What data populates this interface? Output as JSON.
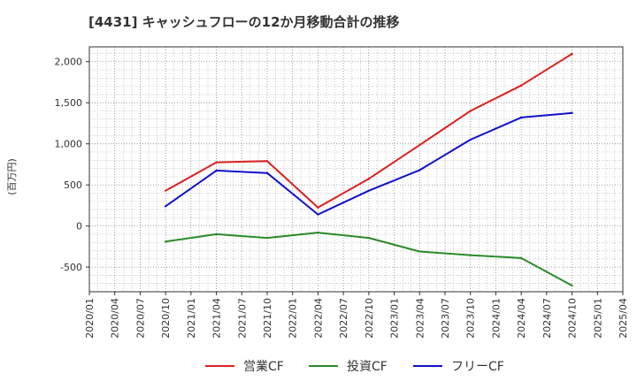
{
  "chart_data": {
    "type": "line",
    "title": "[4431]  キャッシュフローの12か月移動合計の推移",
    "ylabel": "(百万円)",
    "xlabel": "",
    "ylim": [
      -800,
      2180
    ],
    "yticks": [
      -500,
      0,
      500,
      1000,
      1500,
      2000
    ],
    "ytick_labels": [
      "-500",
      "0",
      "500",
      "1,000",
      "1,500",
      "2,000"
    ],
    "grid": true,
    "legend_position": "bottom",
    "categories": [
      "2020/01",
      "2020/04",
      "2020/07",
      "2020/10",
      "2021/01",
      "2021/04",
      "2021/07",
      "2021/10",
      "2022/01",
      "2022/04",
      "2022/07",
      "2022/10",
      "2023/01",
      "2023/04",
      "2023/07",
      "2023/10",
      "2024/01",
      "2024/04",
      "2024/07",
      "2024/10",
      "2025/01",
      "2025/04"
    ],
    "series": [
      {
        "name": "営業CF",
        "color": "#dd1f1f",
        "points": [
          [
            "2020/10",
            430
          ],
          [
            "2021/04",
            775
          ],
          [
            "2021/10",
            790
          ],
          [
            "2022/04",
            225
          ],
          [
            "2022/10",
            575
          ],
          [
            "2023/04",
            985
          ],
          [
            "2023/10",
            1400
          ],
          [
            "2024/04",
            1710
          ],
          [
            "2024/10",
            2095
          ]
        ]
      },
      {
        "name": "投資CF",
        "color": "#2a8a2a",
        "points": [
          [
            "2020/10",
            -190
          ],
          [
            "2021/04",
            -100
          ],
          [
            "2021/10",
            -145
          ],
          [
            "2022/04",
            -80
          ],
          [
            "2022/10",
            -145
          ],
          [
            "2023/04",
            -310
          ],
          [
            "2023/10",
            -355
          ],
          [
            "2024/04",
            -390
          ],
          [
            "2024/10",
            -725
          ]
        ]
      },
      {
        "name": "フリーCF",
        "color": "#1111cc",
        "points": [
          [
            "2020/10",
            240
          ],
          [
            "2021/04",
            675
          ],
          [
            "2021/10",
            645
          ],
          [
            "2022/04",
            140
          ],
          [
            "2022/10",
            430
          ],
          [
            "2023/04",
            680
          ],
          [
            "2023/10",
            1050
          ],
          [
            "2024/04",
            1320
          ],
          [
            "2024/10",
            1375
          ]
        ]
      }
    ]
  }
}
